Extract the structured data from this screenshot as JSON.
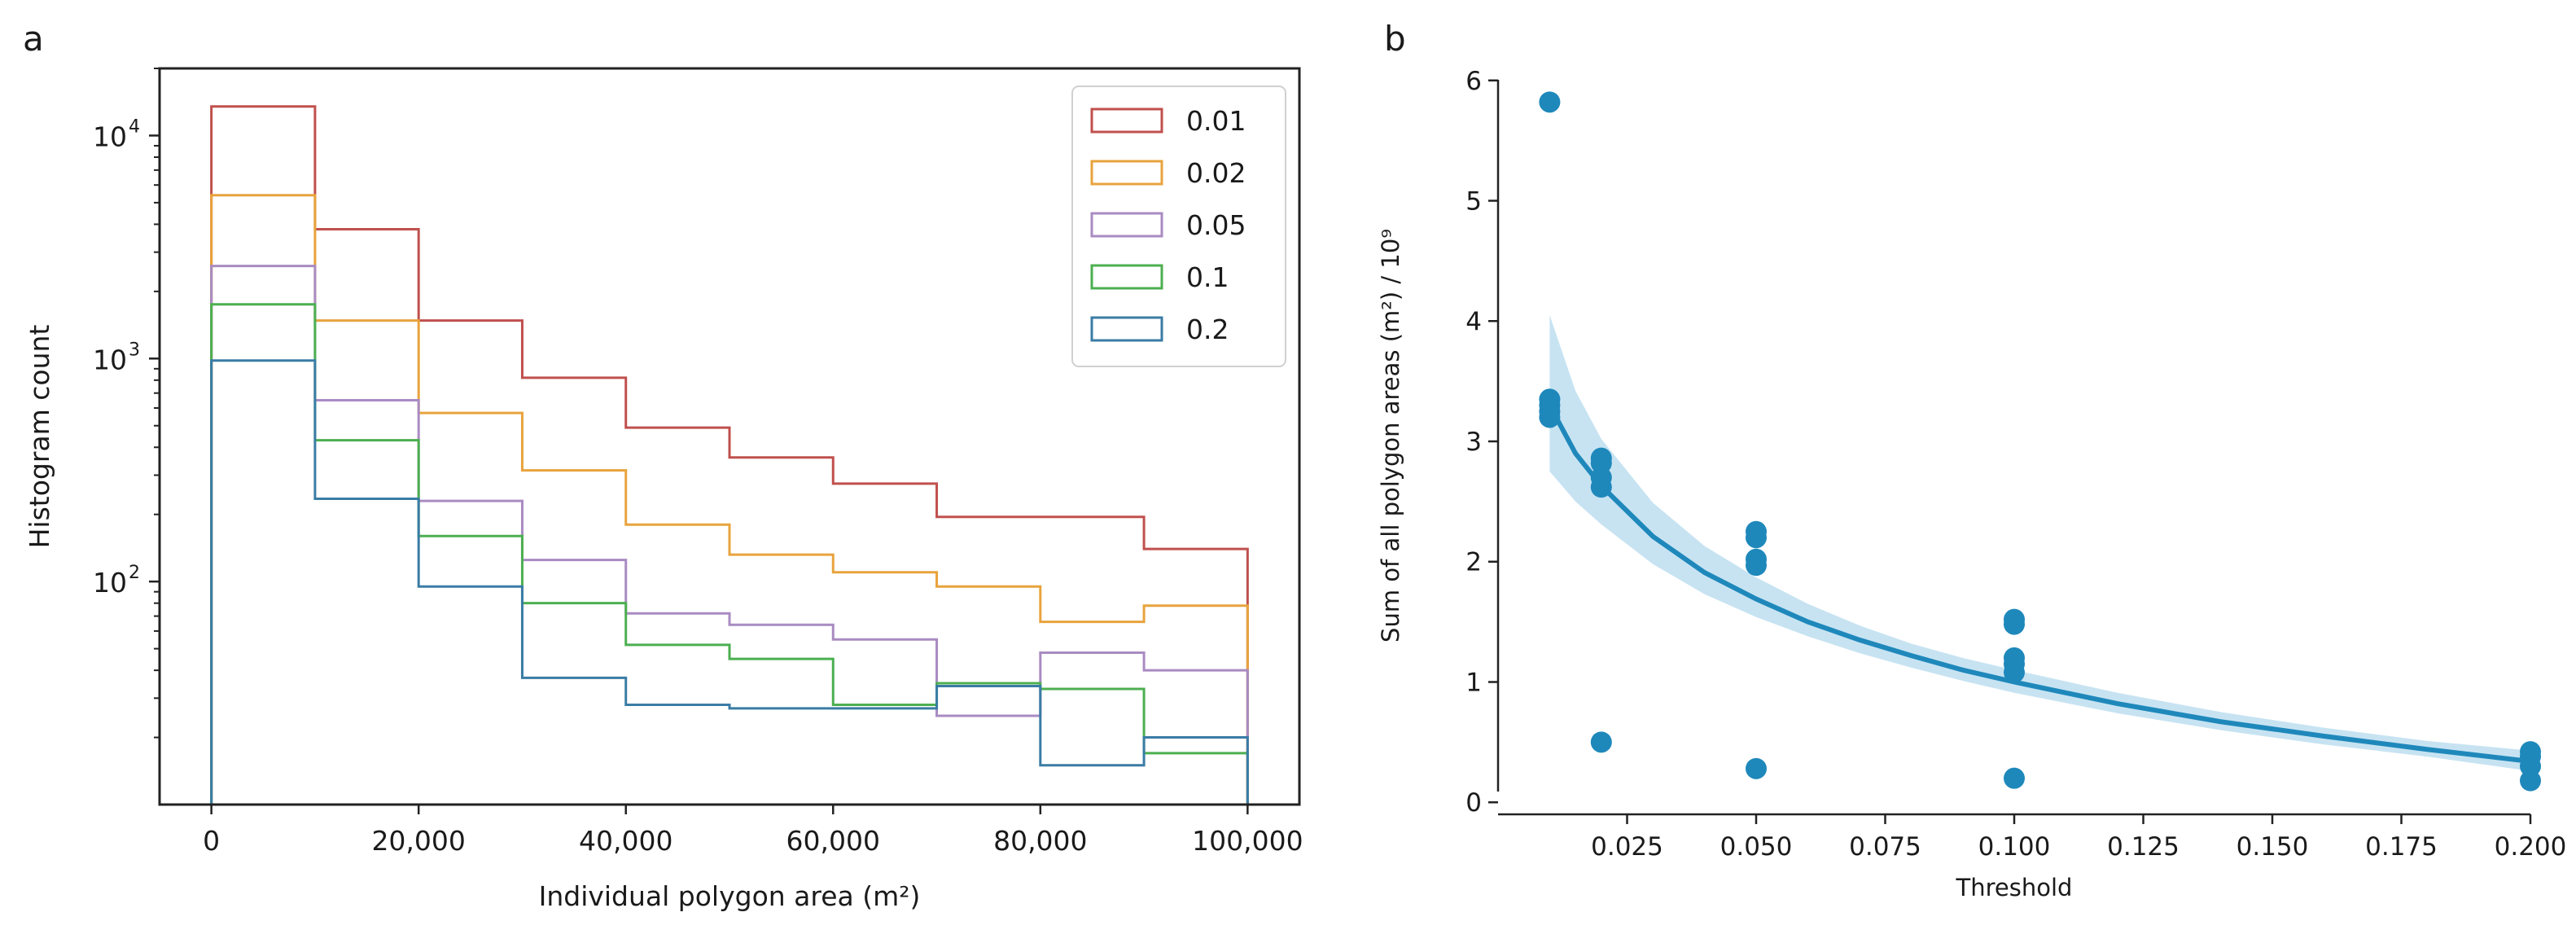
{
  "chart_data": [
    {
      "panel_label": "a",
      "type": "histogram-step",
      "title": "",
      "xlabel": "Individual polygon area (m²)",
      "ylabel": "Histogram count",
      "y_scale": "log",
      "xlim": [
        -5000,
        105000
      ],
      "ylim": [
        10,
        20000
      ],
      "x_ticks": [
        0,
        20000,
        40000,
        60000,
        80000,
        100000
      ],
      "x_tick_labels": [
        "0",
        "20,000",
        "40,000",
        "60,000",
        "80,000",
        "100,000"
      ],
      "y_ticks": [
        100,
        1000,
        10000
      ],
      "y_tick_labels": [
        "10",
        "10",
        "10"
      ],
      "y_tick_exponents": [
        "2",
        "3",
        "4"
      ],
      "bin_edges": [
        0,
        10000,
        20000,
        30000,
        40000,
        50000,
        60000,
        70000,
        80000,
        90000,
        100000
      ],
      "legend": {
        "placement": "top-right",
        "title": ""
      },
      "series": [
        {
          "name": "0.01",
          "color": "#c0504d",
          "values": [
            13500,
            3800,
            1480,
            820,
            490,
            360,
            275,
            195,
            195,
            140
          ]
        },
        {
          "name": "0.02",
          "color": "#e8a33d",
          "values": [
            5400,
            1480,
            570,
            315,
            180,
            132,
            110,
            95,
            66,
            78
          ]
        },
        {
          "name": "0.05",
          "color": "#a98bc2",
          "values": [
            2600,
            650,
            230,
            125,
            72,
            64,
            55,
            25,
            48,
            40
          ]
        },
        {
          "name": "0.1",
          "color": "#4caf50",
          "values": [
            1750,
            430,
            160,
            80,
            52,
            45,
            28,
            35,
            33,
            17
          ]
        },
        {
          "name": "0.2",
          "color": "#3a7ca5",
          "values": [
            980,
            235,
            95,
            37,
            28,
            27,
            27,
            34,
            15,
            20
          ]
        }
      ]
    },
    {
      "panel_label": "b",
      "type": "scatter",
      "title": "",
      "xlabel": "Threshold",
      "ylabel": "Sum of all polygon areas (m²) / 10⁹",
      "xlim": [
        0.0,
        0.2
      ],
      "ylim": [
        -0.1,
        6.1
      ],
      "x_ticks": [
        0.025,
        0.05,
        0.075,
        0.1,
        0.125,
        0.15,
        0.175,
        0.2
      ],
      "x_tick_labels": [
        "0.025",
        "0.050",
        "0.075",
        "0.100",
        "0.125",
        "0.150",
        "0.175",
        "0.200"
      ],
      "y_ticks": [
        0,
        1,
        2,
        3,
        4,
        5,
        6
      ],
      "y_tick_labels": [
        "0",
        "1",
        "2",
        "3",
        "4",
        "5",
        "6"
      ],
      "color": "#1f88bb",
      "points": [
        {
          "x": 0.01,
          "y": 5.82
        },
        {
          "x": 0.01,
          "y": 3.35
        },
        {
          "x": 0.01,
          "y": 3.3
        },
        {
          "x": 0.01,
          "y": 3.25
        },
        {
          "x": 0.01,
          "y": 3.2
        },
        {
          "x": 0.02,
          "y": 2.86
        },
        {
          "x": 0.02,
          "y": 2.82
        },
        {
          "x": 0.02,
          "y": 2.7
        },
        {
          "x": 0.02,
          "y": 2.62
        },
        {
          "x": 0.02,
          "y": 0.5
        },
        {
          "x": 0.05,
          "y": 2.25
        },
        {
          "x": 0.05,
          "y": 2.2
        },
        {
          "x": 0.05,
          "y": 2.02
        },
        {
          "x": 0.05,
          "y": 1.97
        },
        {
          "x": 0.05,
          "y": 0.28
        },
        {
          "x": 0.1,
          "y": 1.52
        },
        {
          "x": 0.1,
          "y": 1.48
        },
        {
          "x": 0.1,
          "y": 1.2
        },
        {
          "x": 0.1,
          "y": 1.15
        },
        {
          "x": 0.1,
          "y": 1.08
        },
        {
          "x": 0.1,
          "y": 0.2
        },
        {
          "x": 0.2,
          "y": 0.42
        },
        {
          "x": 0.2,
          "y": 0.38
        },
        {
          "x": 0.2,
          "y": 0.3
        },
        {
          "x": 0.2,
          "y": 0.18
        }
      ],
      "fit_line": {
        "x": [
          0.01,
          0.015,
          0.02,
          0.03,
          0.04,
          0.05,
          0.06,
          0.07,
          0.08,
          0.09,
          0.1,
          0.12,
          0.14,
          0.16,
          0.18,
          0.2
        ],
        "y": [
          3.3,
          2.9,
          2.63,
          2.21,
          1.91,
          1.69,
          1.5,
          1.35,
          1.22,
          1.1,
          1.0,
          0.82,
          0.67,
          0.55,
          0.44,
          0.34
        ],
        "ci_lower": [
          2.75,
          2.5,
          2.31,
          1.98,
          1.73,
          1.54,
          1.38,
          1.24,
          1.12,
          1.01,
          0.91,
          0.74,
          0.6,
          0.48,
          0.38,
          0.26
        ],
        "ci_upper": [
          4.05,
          3.42,
          3.02,
          2.49,
          2.13,
          1.87,
          1.65,
          1.47,
          1.32,
          1.2,
          1.1,
          0.91,
          0.75,
          0.62,
          0.51,
          0.43
        ]
      }
    }
  ]
}
